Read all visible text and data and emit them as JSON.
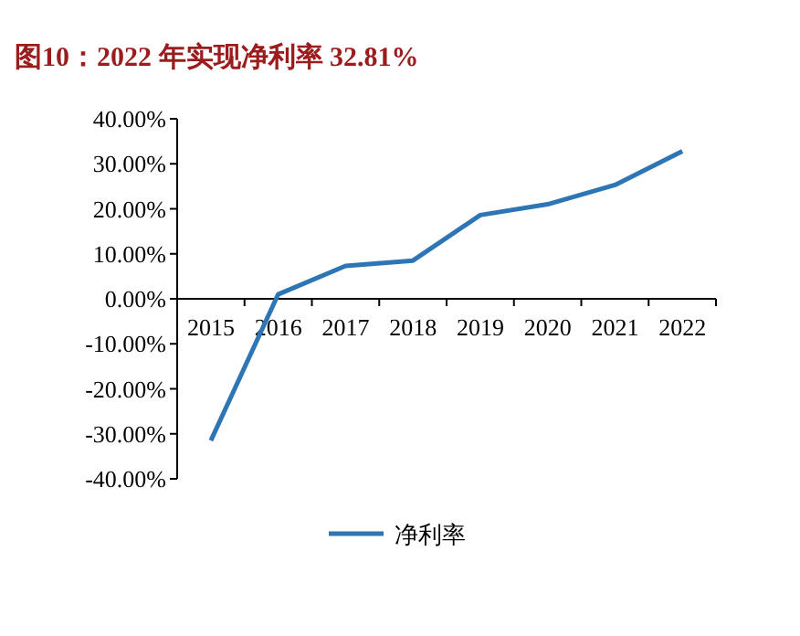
{
  "chart_data": {
    "type": "line",
    "title": "图10：2022 年实现净利率 32.81%",
    "categories": [
      "2015",
      "2016",
      "2017",
      "2018",
      "2019",
      "2020",
      "2021",
      "2022"
    ],
    "series": [
      {
        "name": "净利率",
        "color": "#2e75b6",
        "values": [
          -31.5,
          1.0,
          7.3,
          8.5,
          18.6,
          21.0,
          25.3,
          32.8
        ]
      }
    ],
    "ylim": [
      -40,
      40
    ],
    "yticks": [
      {
        "value": -40,
        "label": "-40.00%"
      },
      {
        "value": -30,
        "label": "-30.00%"
      },
      {
        "value": -20,
        "label": "-20.00%"
      },
      {
        "value": -10,
        "label": "-10.00%"
      },
      {
        "value": 0,
        "label": "0.00%"
      },
      {
        "value": 10,
        "label": "10.00%"
      },
      {
        "value": 20,
        "label": "20.00%"
      },
      {
        "value": 30,
        "label": "30.00%"
      },
      {
        "value": 40,
        "label": "40.00%"
      }
    ],
    "grid": false,
    "legend": "bottom",
    "marker": "none",
    "line_style": "solid"
  }
}
